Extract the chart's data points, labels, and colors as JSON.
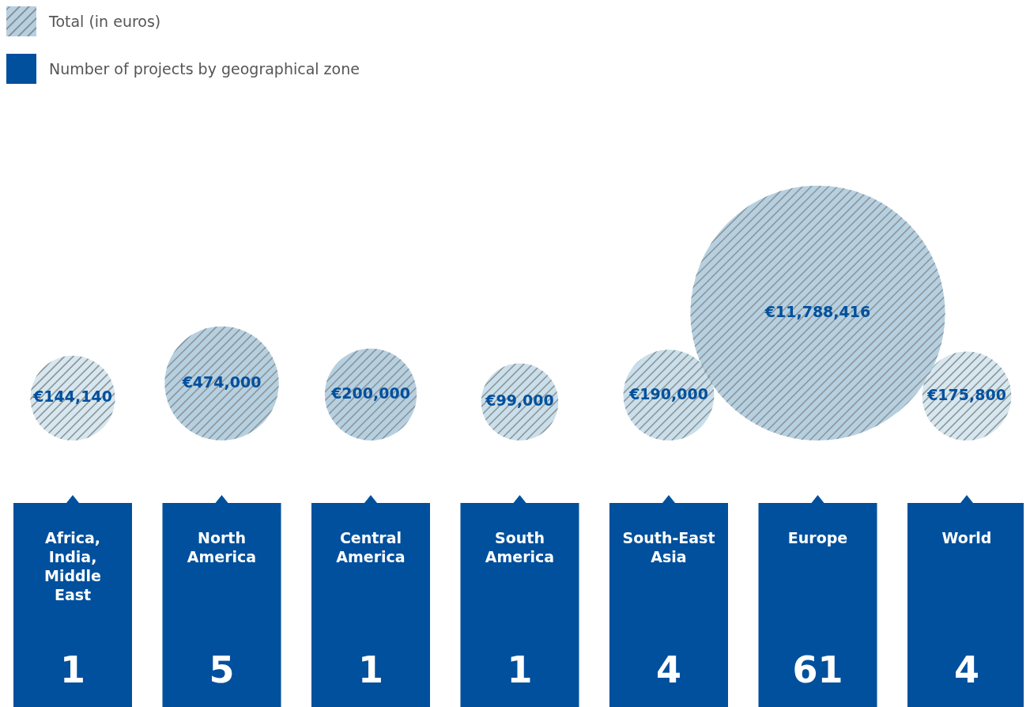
{
  "chart_data": {
    "type": "other",
    "legend": "top left",
    "categories": [
      "Africa, India, Middle East",
      "North America",
      "Central America",
      "South America",
      "South-East Asia",
      "Europe",
      "World"
    ],
    "series": [
      {
        "name": "Total (in euros)",
        "color": "#b5d0e1",
        "colors": [
          "#d6e7f0",
          "#b5d0e1",
          "#b5d0e1",
          "#c9dfeb",
          "#c9dfeb",
          "#b5d0e1",
          "#d6e7f0"
        ],
        "values": [
          144140,
          474000,
          200000,
          99000,
          190000,
          11788416,
          175800
        ],
        "value_labels": [
          "€144,140",
          "€474,000",
          "€200,000",
          "€99,000",
          "€190,000",
          "€11,788,416",
          "€175,800"
        ]
      },
      {
        "name": "Number of projects by geographical zone",
        "color": "#00509d",
        "values": [
          1,
          5,
          1,
          1,
          4,
          61,
          4
        ],
        "value_labels": [
          "1",
          "5",
          "1",
          "1",
          "4",
          "61",
          "4"
        ]
      }
    ]
  }
}
